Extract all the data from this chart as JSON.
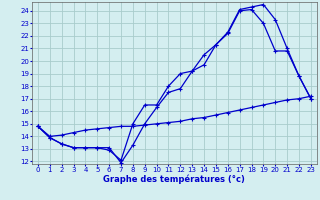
{
  "title": "Graphe des températures (°c)",
  "background_color": "#d4eef0",
  "grid_color": "#a8cccc",
  "line_color": "#0000cc",
  "xlim": [
    -0.5,
    23.5
  ],
  "ylim": [
    11.8,
    24.7
  ],
  "xticks": [
    0,
    1,
    2,
    3,
    4,
    5,
    6,
    7,
    8,
    9,
    10,
    11,
    12,
    13,
    14,
    15,
    16,
    17,
    18,
    19,
    20,
    21,
    22,
    23
  ],
  "yticks": [
    12,
    13,
    14,
    15,
    16,
    17,
    18,
    19,
    20,
    21,
    22,
    23,
    24
  ],
  "line1_x": [
    0,
    1,
    2,
    3,
    4,
    5,
    6,
    7,
    8,
    9,
    10,
    11,
    12,
    13,
    14,
    15,
    16,
    17,
    18,
    19,
    20,
    21,
    22,
    23
  ],
  "line1_y": [
    14.8,
    13.9,
    13.4,
    13.1,
    13.1,
    13.1,
    13.1,
    11.9,
    13.3,
    15.0,
    16.3,
    17.5,
    17.8,
    19.2,
    20.5,
    21.3,
    22.3,
    24.1,
    24.3,
    24.5,
    23.3,
    21.0,
    18.8,
    17.0
  ],
  "line2_x": [
    0,
    1,
    2,
    3,
    4,
    5,
    6,
    7,
    8,
    9,
    10,
    11,
    12,
    13,
    14,
    15,
    16,
    17,
    18,
    19,
    20,
    21,
    22,
    23
  ],
  "line2_y": [
    14.8,
    13.9,
    13.4,
    13.1,
    13.1,
    13.1,
    12.9,
    12.1,
    15.0,
    16.5,
    16.5,
    18.0,
    19.0,
    19.2,
    19.7,
    21.3,
    22.2,
    24.0,
    24.1,
    23.0,
    20.8,
    20.8,
    18.8,
    17.0
  ],
  "line3_x": [
    0,
    1,
    2,
    3,
    4,
    5,
    6,
    7,
    8,
    9,
    10,
    11,
    12,
    13,
    14,
    15,
    16,
    17,
    18,
    19,
    20,
    21,
    22,
    23
  ],
  "line3_y": [
    14.8,
    14.0,
    14.1,
    14.3,
    14.5,
    14.6,
    14.7,
    14.8,
    14.8,
    14.9,
    15.0,
    15.1,
    15.2,
    15.4,
    15.5,
    15.7,
    15.9,
    16.1,
    16.3,
    16.5,
    16.7,
    16.9,
    17.0,
    17.2
  ],
  "xlabel_fontsize": 6.0,
  "tick_fontsize": 5.0
}
